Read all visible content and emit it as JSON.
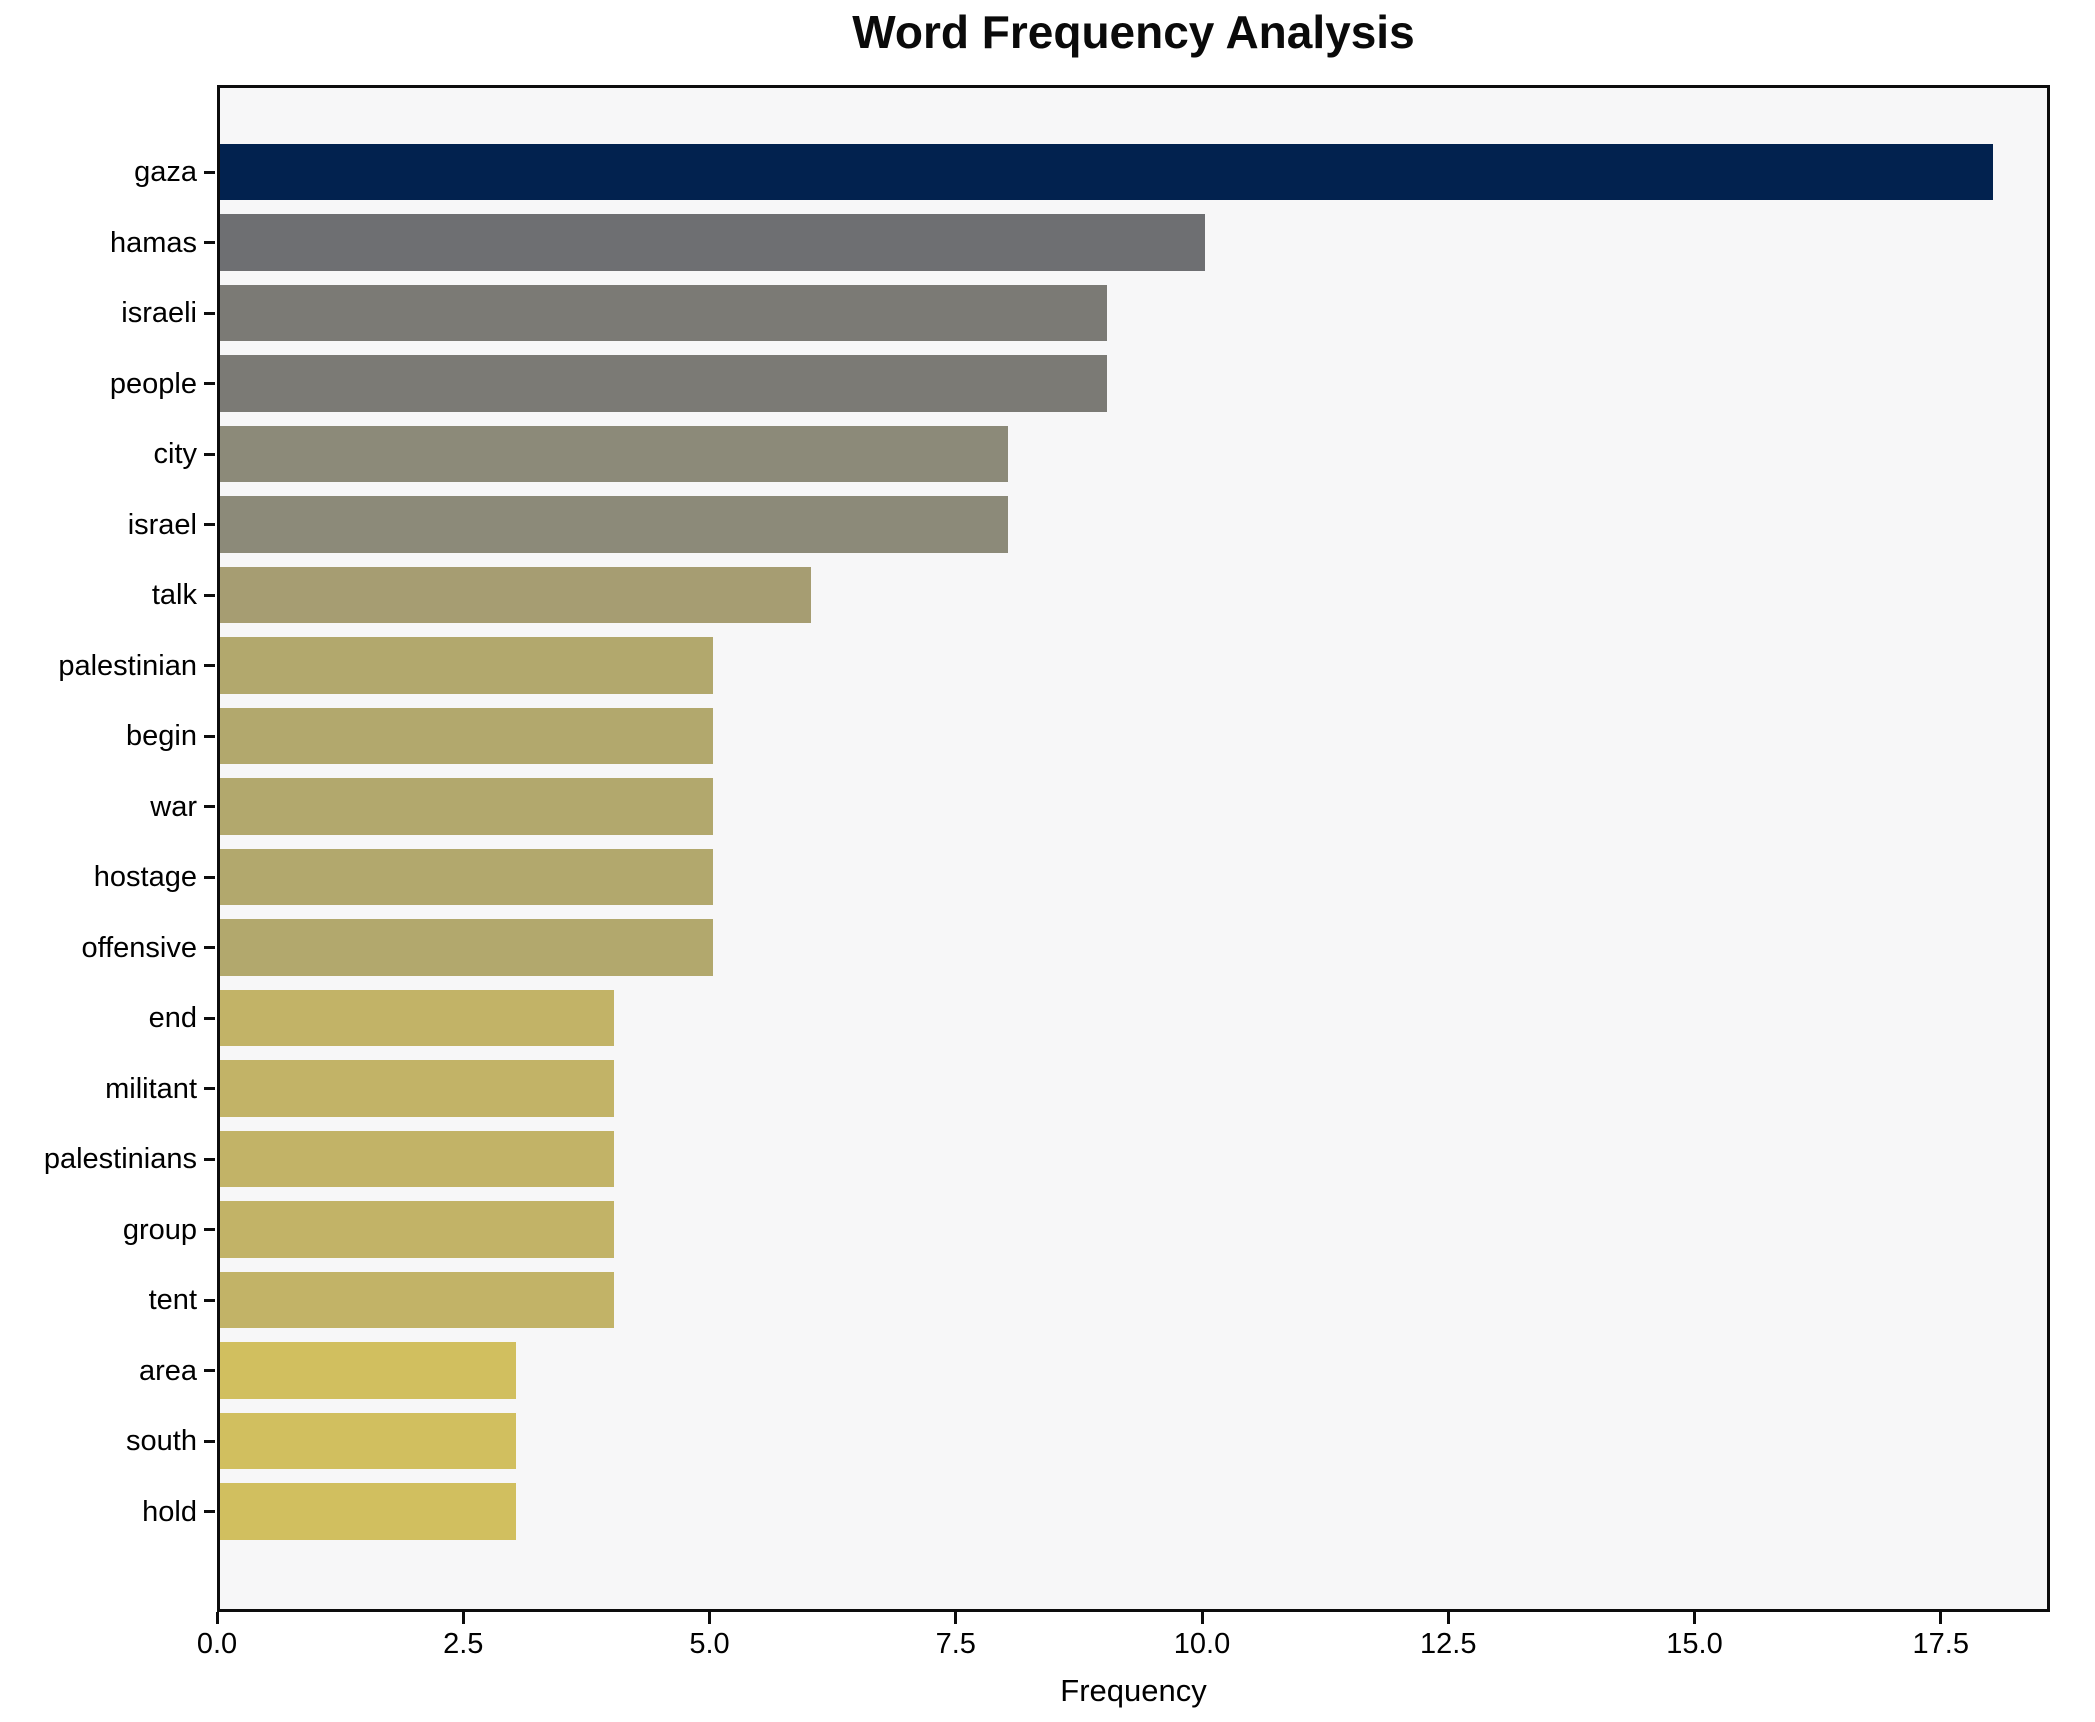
{
  "title": "Word Frequency Analysis",
  "chart_data": {
    "type": "bar",
    "orientation": "horizontal",
    "title": "Word Frequency Analysis",
    "xlabel": "Frequency",
    "ylabel": "",
    "categories": [
      "gaza",
      "hamas",
      "israeli",
      "people",
      "city",
      "israel",
      "talk",
      "palestinian",
      "begin",
      "war",
      "hostage",
      "offensive",
      "end",
      "militant",
      "palestinians",
      "group",
      "tent",
      "area",
      "south",
      "hold"
    ],
    "values": [
      18,
      10,
      9,
      9,
      8,
      8,
      6,
      5,
      5,
      5,
      5,
      5,
      4,
      4,
      4,
      4,
      4,
      3,
      3,
      3
    ],
    "bar_colors": [
      "#02224f",
      "#6e6f72",
      "#7b7a75",
      "#7b7a75",
      "#8c8a79",
      "#8c8a79",
      "#a69d72",
      "#b2a86d",
      "#b2a86d",
      "#b2a86d",
      "#b2a86d",
      "#b2a86d",
      "#c2b367",
      "#c2b367",
      "#c2b367",
      "#c2b367",
      "#c2b367",
      "#d1bf5f",
      "#d1bf5f",
      "#d1bf5f"
    ],
    "xlim": [
      0,
      18.6
    ],
    "xticks": [
      0,
      2.5,
      5,
      7.5,
      10,
      12.5,
      15,
      17.5
    ],
    "xtick_labels": [
      "0.0",
      "2.5",
      "5.0",
      "7.5",
      "10.0",
      "12.5",
      "15.0",
      "17.5"
    ],
    "grid": false,
    "legend": null,
    "plot_background": "#f7f7f8",
    "figure_background": "#ffffff",
    "spine_color": "#0d0d0d"
  }
}
